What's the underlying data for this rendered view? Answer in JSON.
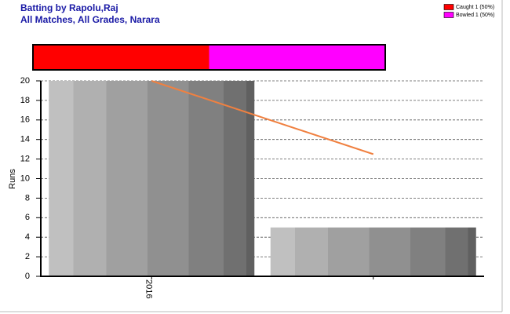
{
  "chart_data": [
    {
      "type": "bar",
      "title": "Batting by Rapolu,Raj",
      "subtitle": "All Matches, All Grades, Narara",
      "ylabel": "Runs",
      "categories": [
        "2016",
        null
      ],
      "values": [
        20,
        5
      ],
      "trend": {
        "color": "#f08040",
        "values": [
          20,
          12.5
        ]
      },
      "ylim": [
        0,
        20
      ],
      "yticks": [
        0,
        2,
        4,
        6,
        8,
        10,
        12,
        14,
        16,
        18,
        20
      ],
      "grid": true
    },
    {
      "type": "proportion",
      "series": [
        {
          "name": "Caught 1 (50%)",
          "color": "#ff0000",
          "values": [
            1
          ]
        },
        {
          "name": "Bowled 1 (50%)",
          "color": "#ff00ff",
          "values": [
            1
          ]
        }
      ]
    }
  ]
}
